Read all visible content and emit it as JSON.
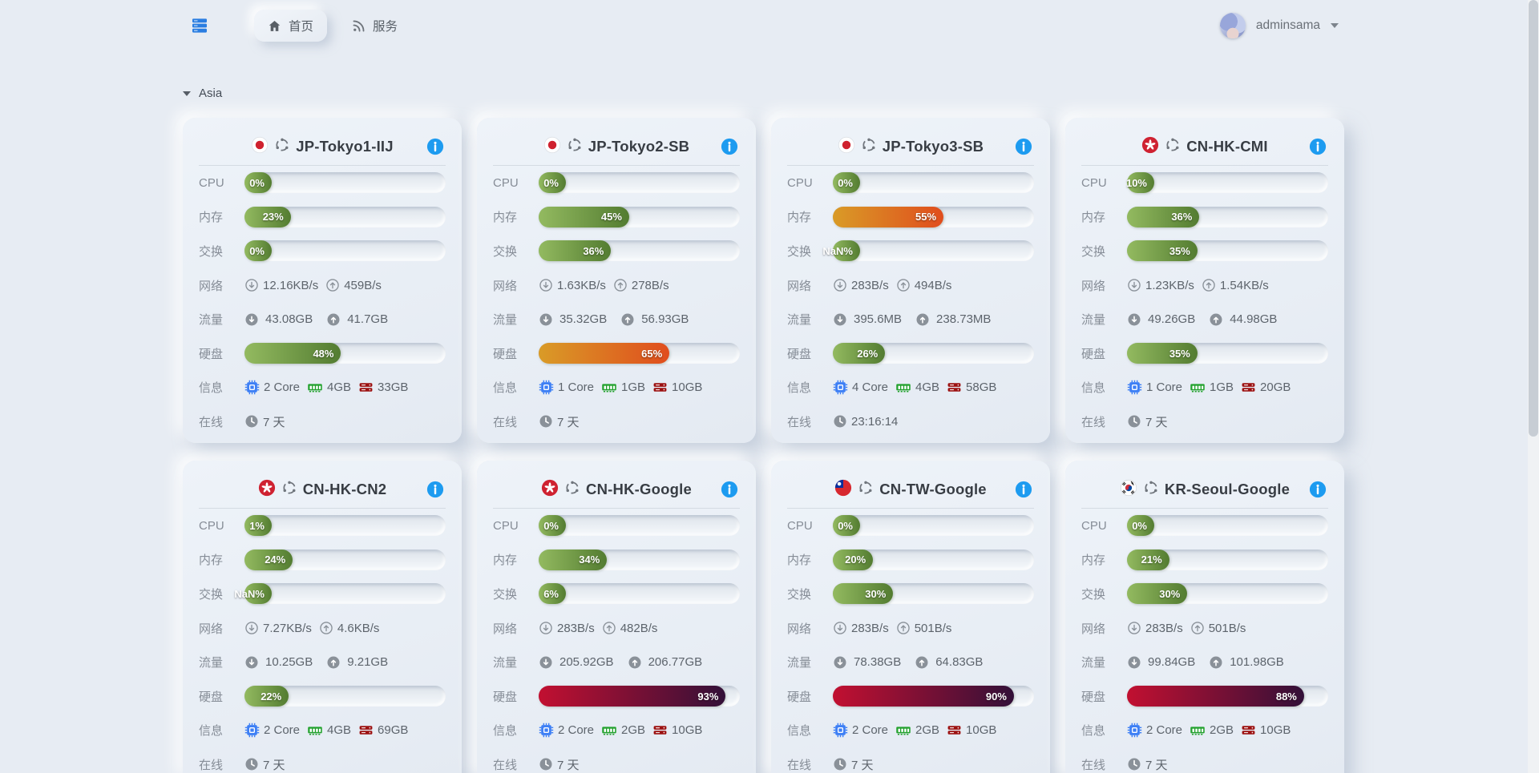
{
  "nav": {
    "brand_icon": "server-stack",
    "tabs": [
      {
        "id": "home",
        "label": "首页",
        "icon": "home",
        "active": true
      },
      {
        "id": "services",
        "label": "服务",
        "icon": "rss",
        "active": false
      }
    ],
    "user": {
      "name": "adminsama"
    }
  },
  "section": {
    "title": "Asia",
    "collapsed": false
  },
  "row_labels": {
    "cpu": "CPU",
    "memory": "内存",
    "swap": "交换",
    "network": "网络",
    "traffic": "流量",
    "disk": "硬盘",
    "info": "信息",
    "online": "在线"
  },
  "colors": {
    "bar_green_start": "#93ba60",
    "bar_green_end": "#537c31",
    "bar_orange_start": "#d99b27",
    "bar_orange_end": "#e04d1d",
    "bar_red_start": "#c21031",
    "bar_red_end": "#331038",
    "info_button_blue": "#1d9bf0",
    "cpu_icon_blue": "#3d7ff5",
    "ram_icon_green": "#22a12d",
    "disk_icon_red": "#9c1111"
  },
  "servers": [
    {
      "name": "JP-Tokyo1-IIJ",
      "flag": "jp",
      "os_icon": "ubuntu",
      "cpu": {
        "label": "0%",
        "pct": 0,
        "level": "green"
      },
      "memory": {
        "label": "23%",
        "pct": 23,
        "level": "green"
      },
      "swap": {
        "label": "0%",
        "pct": 0,
        "level": "green"
      },
      "network": {
        "down": "12.16KB/s",
        "up": "459B/s"
      },
      "traffic": {
        "down": "43.08GB",
        "up": "41.7GB"
      },
      "disk": {
        "label": "48%",
        "pct": 48,
        "level": "green"
      },
      "info": {
        "cores": "2 Core",
        "ram": "4GB",
        "disk": "33GB"
      },
      "online": "7 天"
    },
    {
      "name": "JP-Tokyo2-SB",
      "flag": "jp",
      "os_icon": "ubuntu",
      "cpu": {
        "label": "0%",
        "pct": 0,
        "level": "green"
      },
      "memory": {
        "label": "45%",
        "pct": 45,
        "level": "green"
      },
      "swap": {
        "label": "36%",
        "pct": 36,
        "level": "green"
      },
      "network": {
        "down": "1.63KB/s",
        "up": "278B/s"
      },
      "traffic": {
        "down": "35.32GB",
        "up": "56.93GB"
      },
      "disk": {
        "label": "65%",
        "pct": 65,
        "level": "orange"
      },
      "info": {
        "cores": "1 Core",
        "ram": "1GB",
        "disk": "10GB"
      },
      "online": "7 天"
    },
    {
      "name": "JP-Tokyo3-SB",
      "flag": "jp",
      "os_icon": "ubuntu",
      "cpu": {
        "label": "0%",
        "pct": 0,
        "level": "green"
      },
      "memory": {
        "label": "55%",
        "pct": 55,
        "level": "orange"
      },
      "swap": {
        "label": "NaN%",
        "pct": null,
        "level": "green"
      },
      "network": {
        "down": "283B/s",
        "up": "494B/s"
      },
      "traffic": {
        "down": "395.6MB",
        "up": "238.73MB"
      },
      "disk": {
        "label": "26%",
        "pct": 26,
        "level": "green"
      },
      "info": {
        "cores": "4 Core",
        "ram": "4GB",
        "disk": "58GB"
      },
      "online": "23:16:14"
    },
    {
      "name": "CN-HK-CMI",
      "flag": "hk",
      "os_icon": "ubuntu",
      "cpu": {
        "label": "10%",
        "pct": 10,
        "level": "green"
      },
      "memory": {
        "label": "36%",
        "pct": 36,
        "level": "green"
      },
      "swap": {
        "label": "35%",
        "pct": 35,
        "level": "green"
      },
      "network": {
        "down": "1.23KB/s",
        "up": "1.54KB/s"
      },
      "traffic": {
        "down": "49.26GB",
        "up": "44.98GB"
      },
      "disk": {
        "label": "35%",
        "pct": 35,
        "level": "green"
      },
      "info": {
        "cores": "1 Core",
        "ram": "1GB",
        "disk": "20GB"
      },
      "online": "7 天"
    },
    {
      "name": "CN-HK-CN2",
      "flag": "hk",
      "os_icon": "ubuntu",
      "cpu": {
        "label": "1%",
        "pct": 1,
        "level": "green"
      },
      "memory": {
        "label": "24%",
        "pct": 24,
        "level": "green"
      },
      "swap": {
        "label": "NaN%",
        "pct": null,
        "level": "green"
      },
      "network": {
        "down": "7.27KB/s",
        "up": "4.6KB/s"
      },
      "traffic": {
        "down": "10.25GB",
        "up": "9.21GB"
      },
      "disk": {
        "label": "22%",
        "pct": 22,
        "level": "green"
      },
      "info": {
        "cores": "2 Core",
        "ram": "4GB",
        "disk": "69GB"
      },
      "online": "7 天"
    },
    {
      "name": "CN-HK-Google",
      "flag": "hk",
      "os_icon": "ubuntu",
      "cpu": {
        "label": "0%",
        "pct": 0,
        "level": "green"
      },
      "memory": {
        "label": "34%",
        "pct": 34,
        "level": "green"
      },
      "swap": {
        "label": "6%",
        "pct": 6,
        "level": "green"
      },
      "network": {
        "down": "283B/s",
        "up": "482B/s"
      },
      "traffic": {
        "down": "205.92GB",
        "up": "206.77GB"
      },
      "disk": {
        "label": "93%",
        "pct": 93,
        "level": "red"
      },
      "info": {
        "cores": "2 Core",
        "ram": "2GB",
        "disk": "10GB"
      },
      "online": "7 天"
    },
    {
      "name": "CN-TW-Google",
      "flag": "tw",
      "os_icon": "ubuntu",
      "cpu": {
        "label": "0%",
        "pct": 0,
        "level": "green"
      },
      "memory": {
        "label": "20%",
        "pct": 20,
        "level": "green"
      },
      "swap": {
        "label": "30%",
        "pct": 30,
        "level": "green"
      },
      "network": {
        "down": "283B/s",
        "up": "501B/s"
      },
      "traffic": {
        "down": "78.38GB",
        "up": "64.83GB"
      },
      "disk": {
        "label": "90%",
        "pct": 90,
        "level": "red"
      },
      "info": {
        "cores": "2 Core",
        "ram": "2GB",
        "disk": "10GB"
      },
      "online": "7 天"
    },
    {
      "name": "KR-Seoul-Google",
      "flag": "kr",
      "os_icon": "ubuntu",
      "cpu": {
        "label": "0%",
        "pct": 0,
        "level": "green"
      },
      "memory": {
        "label": "21%",
        "pct": 21,
        "level": "green"
      },
      "swap": {
        "label": "30%",
        "pct": 30,
        "level": "green"
      },
      "network": {
        "down": "283B/s",
        "up": "501B/s"
      },
      "traffic": {
        "down": "99.84GB",
        "up": "101.98GB"
      },
      "disk": {
        "label": "88%",
        "pct": 88,
        "level": "red"
      },
      "info": {
        "cores": "2 Core",
        "ram": "2GB",
        "disk": "10GB"
      },
      "online": "7 天"
    }
  ]
}
